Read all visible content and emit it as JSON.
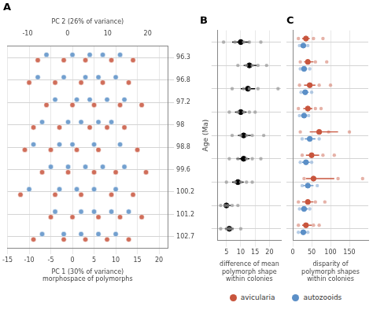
{
  "chart_data": [
    {
      "type": "scatter",
      "title": "A",
      "x_label": "PC 1 (30% of variance)",
      "caption": "morphospace of polymorphs",
      "x2_label": "PC 2 (26% of variance)",
      "categories": [
        "96.3",
        "96.8",
        "97.2",
        "98",
        "98.8",
        "99.6",
        "100.2",
        "101.2",
        "102.7"
      ],
      "xlim": [
        -15,
        22
      ],
      "xticks": [
        -15,
        -10,
        -5,
        0,
        5,
        10,
        15,
        20
      ],
      "x2lim": [
        -15,
        25
      ],
      "x2ticks": [
        -10,
        0,
        10,
        20
      ],
      "grid": true,
      "series": [
        {
          "color": "#c8553d",
          "values": [
            [
              -8,
              -2,
              3,
              9,
              14
            ],
            [
              -10,
              -4,
              2,
              7,
              13
            ],
            [
              -6,
              0,
              5,
              11,
              16
            ],
            [
              -9,
              -3,
              4,
              8,
              12
            ],
            [
              -11,
              -5,
              1,
              6,
              15
            ],
            [
              -7,
              -1,
              5,
              10,
              17
            ],
            [
              -12,
              -4,
              2,
              9,
              14
            ],
            [
              -5,
              0,
              6,
              11,
              16
            ],
            [
              -9,
              -2,
              3,
              8,
              13
            ]
          ]
        },
        {
          "color": "#5b8fc7",
          "values": [
            [
              -6,
              0,
              4,
              7,
              11
            ],
            [
              -8,
              -2,
              3,
              6,
              10
            ],
            [
              -4,
              1,
              4,
              8,
              12
            ],
            [
              -7,
              -1,
              2,
              6,
              9
            ],
            [
              -9,
              -3,
              0,
              5,
              11
            ],
            [
              -5,
              -1,
              3,
              7,
              12
            ],
            [
              -10,
              -3,
              1,
              5,
              10
            ],
            [
              -4,
              2,
              5,
              9,
              13
            ],
            [
              -7,
              -2,
              2,
              6,
              10
            ]
          ]
        }
      ]
    },
    {
      "type": "scatter",
      "title": "B",
      "x_label": "difference of mean polymorph shape within colonies",
      "y_label": "Age (Ma)",
      "xlim": [
        2,
        24
      ],
      "xticks": [
        5,
        10,
        15,
        20
      ],
      "tick_labels": "x",
      "grid": true,
      "color": "#000000",
      "values": [
        10,
        13,
        12.5,
        10,
        11,
        11,
        9,
        5,
        6
      ],
      "ci": [
        [
          7,
          13
        ],
        [
          11,
          15.5
        ],
        [
          10,
          15
        ],
        [
          8,
          12
        ],
        [
          9,
          13.5
        ],
        [
          8.5,
          13
        ],
        [
          7,
          11
        ],
        [
          4,
          6.5
        ],
        [
          4.5,
          7.5
        ]
      ],
      "points": [
        [
          4,
          8,
          11,
          13,
          17
        ],
        [
          9,
          12,
          14,
          16,
          19
        ],
        [
          7,
          11,
          13,
          16,
          23
        ],
        [
          6,
          9,
          11,
          13,
          15
        ],
        [
          7,
          10,
          12,
          14,
          18
        ],
        [
          6,
          9,
          12,
          14,
          17
        ],
        [
          5,
          8,
          10,
          12,
          14
        ],
        [
          3,
          4.5,
          5.5,
          7,
          9
        ],
        [
          3,
          5,
          6,
          7,
          10
        ]
      ]
    },
    {
      "type": "scatter",
      "title": "C",
      "x_label": "disparity of polymorph shapes within colonies",
      "xlim": [
        0,
        200
      ],
      "xticks": [
        0,
        50,
        100,
        150
      ],
      "tick_labels": "x",
      "grid": true,
      "legend": "bottom",
      "series": [
        {
          "name": "avicularia",
          "color": "#c8553d",
          "values": [
            35,
            40,
            45,
            40,
            70,
            50,
            55,
            40,
            35
          ],
          "ci": [
            [
              25,
              45
            ],
            [
              30,
              55
            ],
            [
              30,
              60
            ],
            [
              28,
              52
            ],
            [
              45,
              120
            ],
            [
              35,
              70
            ],
            [
              35,
              110
            ],
            [
              25,
              55
            ],
            [
              25,
              50
            ]
          ],
          "points": [
            [
              15,
              55,
              80
            ],
            [
              20,
              60,
              90
            ],
            [
              18,
              70,
              100
            ],
            [
              15,
              60,
              75
            ],
            [
              20,
              95,
              150
            ],
            [
              25,
              80,
              110
            ],
            [
              30,
              120,
              185
            ],
            [
              15,
              60,
              85
            ],
            [
              15,
              55,
              70
            ]
          ]
        },
        {
          "name": "autozooids",
          "color": "#5b8fc7",
          "values": [
            28,
            30,
            33,
            30,
            45,
            35,
            40,
            30,
            28
          ],
          "ci": [
            [
              22,
              35
            ],
            [
              24,
              38
            ],
            [
              25,
              42
            ],
            [
              22,
              38
            ],
            [
              32,
              60
            ],
            [
              25,
              45
            ],
            [
              28,
              55
            ],
            [
              22,
              40
            ],
            [
              20,
              36
            ]
          ],
          "points": [
            [
              18,
              40
            ],
            [
              20,
              45
            ],
            [
              22,
              50
            ],
            [
              18,
              42
            ],
            [
              25,
              70
            ],
            [
              20,
              50
            ],
            [
              25,
              65
            ],
            [
              18,
              45
            ],
            [
              15,
              40
            ]
          ]
        }
      ]
    }
  ]
}
